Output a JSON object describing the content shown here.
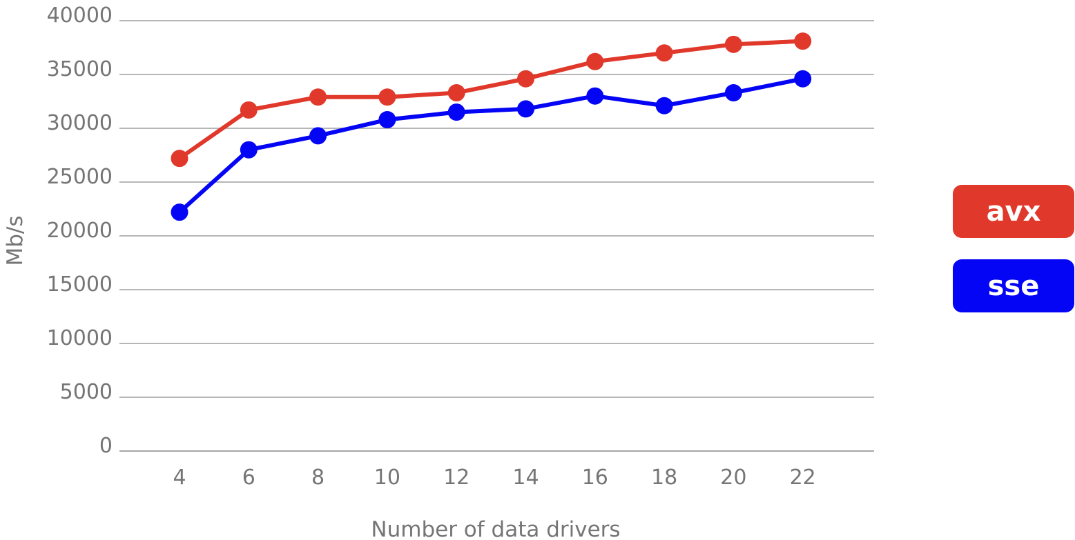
{
  "chart_data": {
    "type": "line",
    "title": "",
    "xlabel": "Number of data drivers",
    "ylabel": "Mb/s",
    "x": [
      4,
      6,
      8,
      10,
      12,
      14,
      16,
      18,
      20,
      22
    ],
    "x_tick_labels": [
      "4",
      "6",
      "8",
      "10",
      "12",
      "14",
      "16",
      "18",
      "20",
      "22"
    ],
    "ylim": [
      0,
      40000
    ],
    "y_ticks": [
      0,
      5000,
      10000,
      15000,
      20000,
      25000,
      30000,
      35000,
      40000
    ],
    "y_tick_labels": [
      "0",
      "5000",
      "10000",
      "15000",
      "20000",
      "25000",
      "30000",
      "35000",
      "40000"
    ],
    "grid": true,
    "legend_position": "right",
    "series": [
      {
        "name": "avx",
        "color": "#e0392b",
        "values": [
          27200,
          31700,
          32900,
          32900,
          33300,
          34600,
          36200,
          37000,
          37800,
          38100
        ]
      },
      {
        "name": "sse",
        "color": "#0505f5",
        "values": [
          22200,
          28000,
          29300,
          30800,
          31500,
          31800,
          33000,
          32100,
          33300,
          34600
        ]
      }
    ]
  }
}
